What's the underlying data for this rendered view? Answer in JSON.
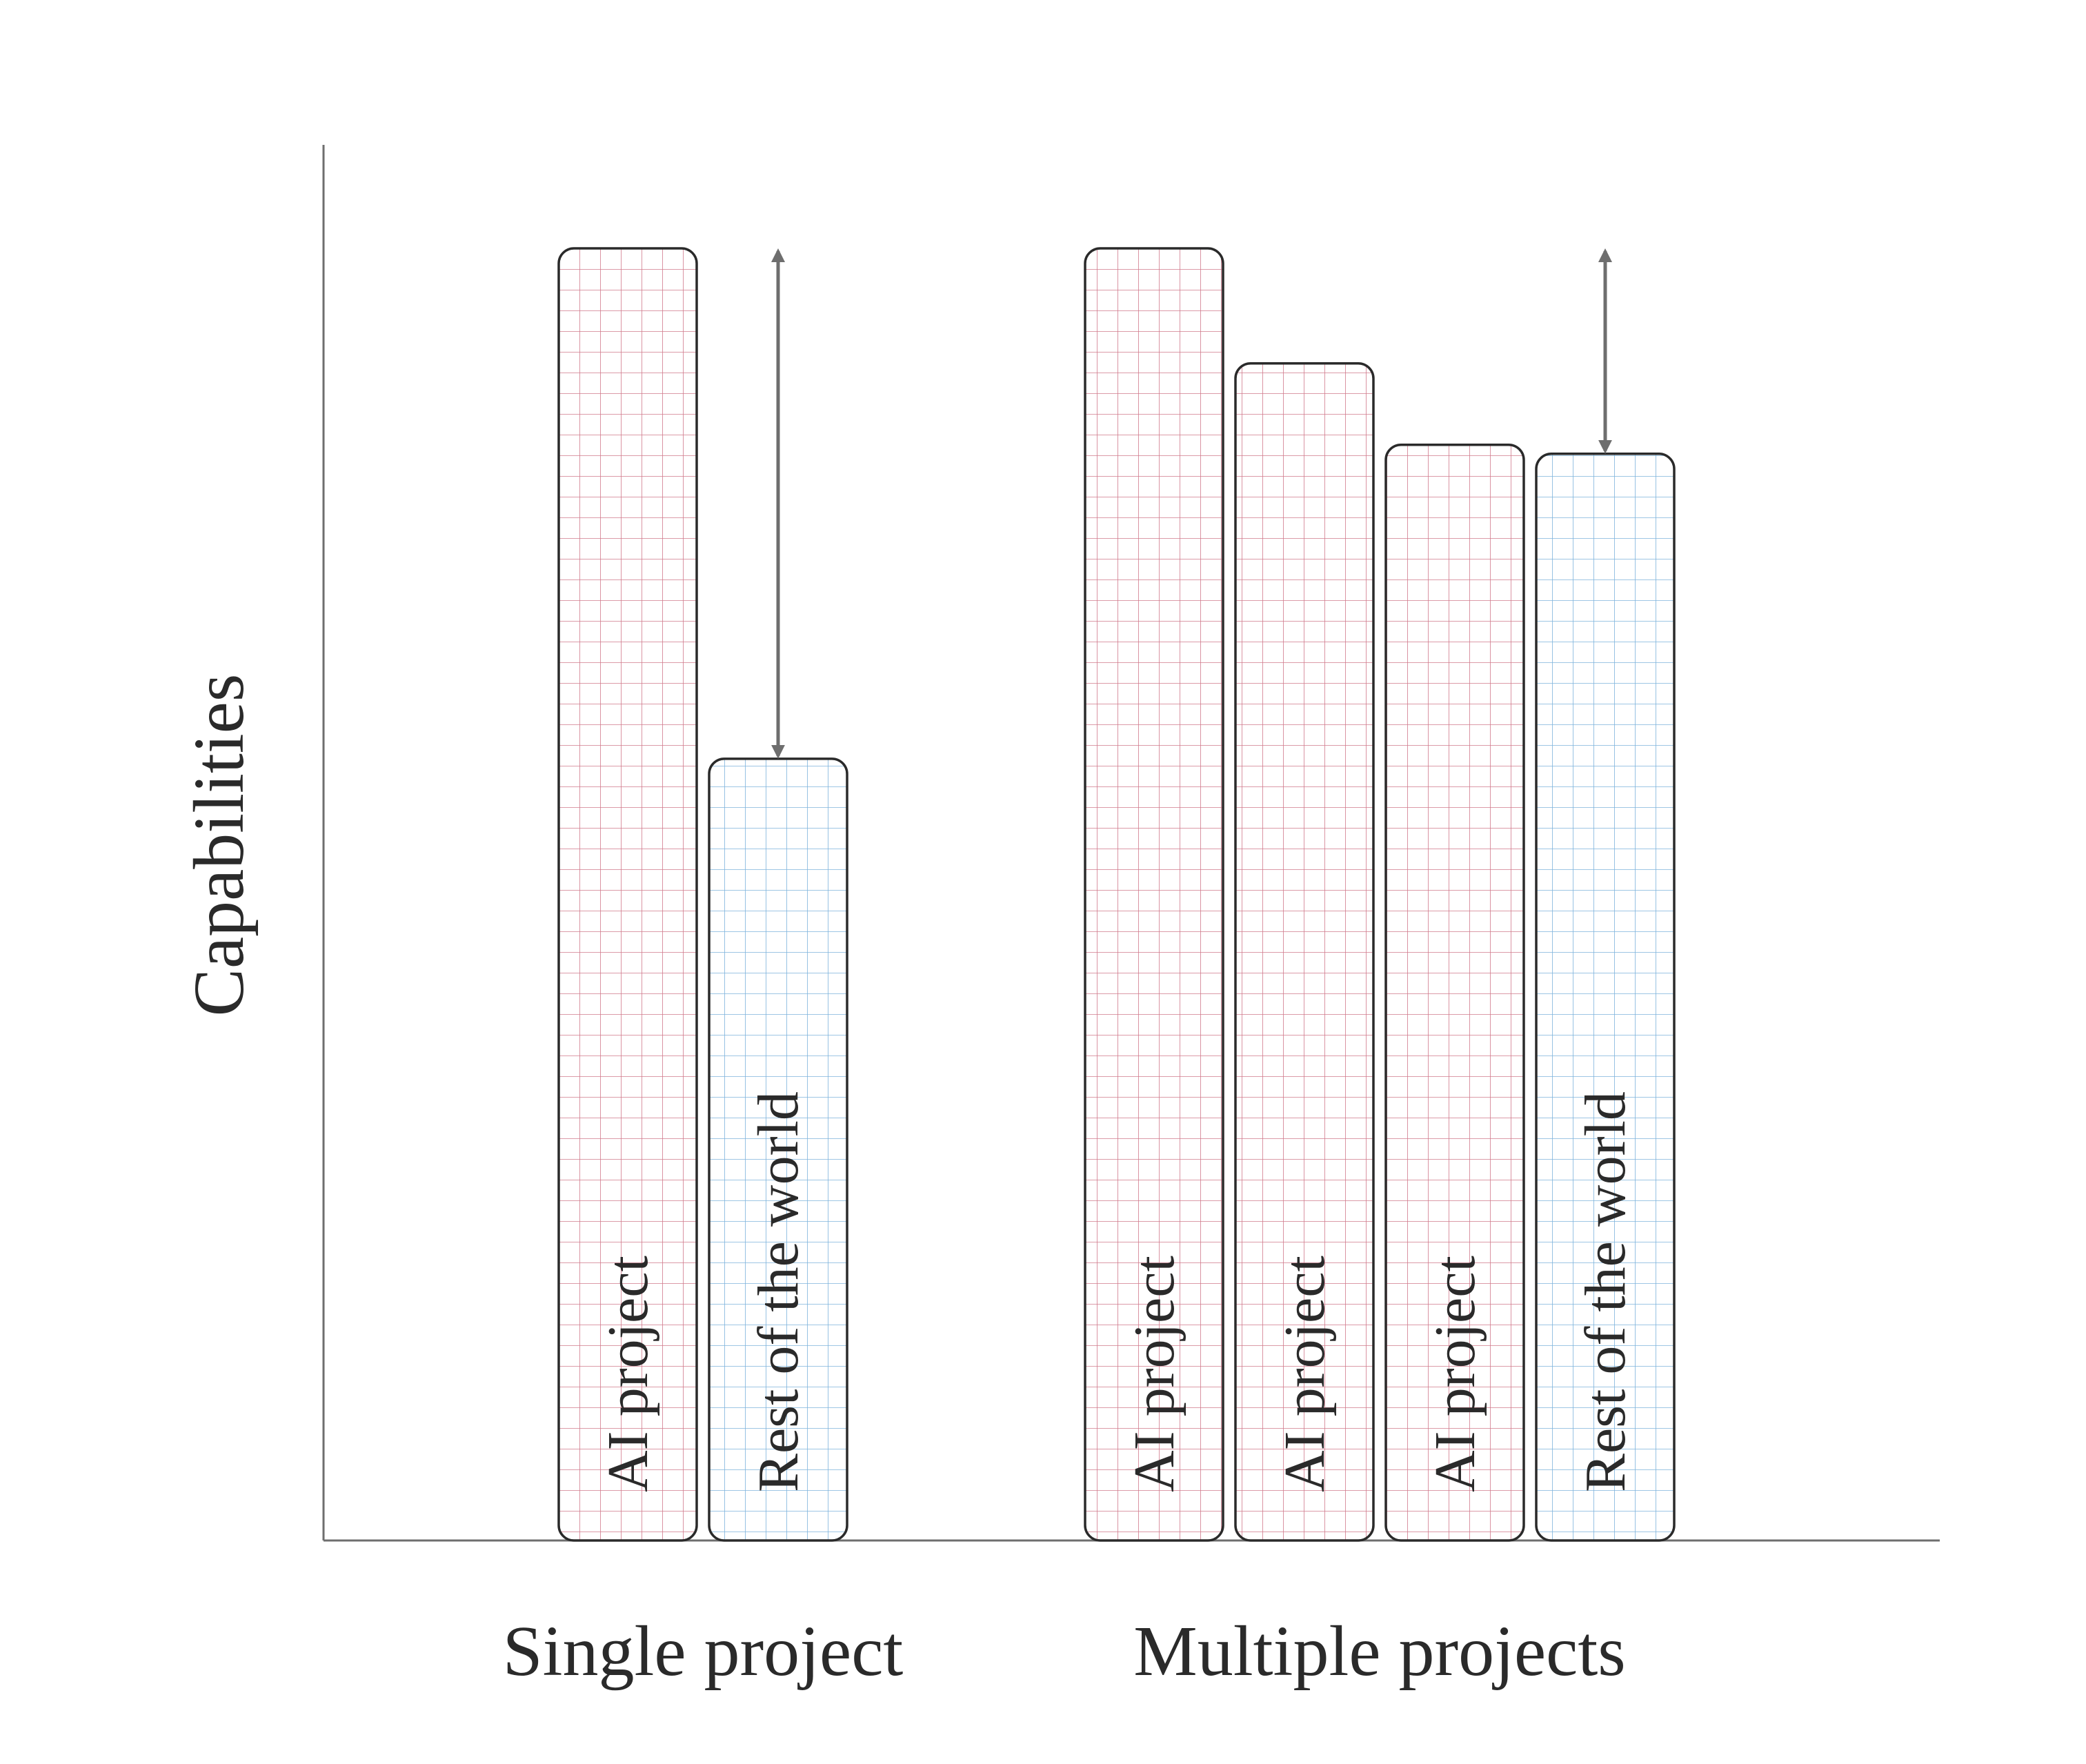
{
  "chart_data": {
    "type": "bar",
    "title": "",
    "xlabel": "",
    "ylabel": "Capabilities",
    "ylim": [
      0,
      100
    ],
    "grid": false,
    "legend": "none",
    "groups": [
      {
        "name": "Single project",
        "bars": [
          {
            "label": "AI project",
            "value": 100,
            "kind": "ai"
          },
          {
            "label": "Rest of the world",
            "value": 60.5,
            "kind": "world"
          }
        ],
        "gap_arrow": {
          "from_value": 100,
          "to_value": 60.5
        }
      },
      {
        "name": "Multiple projects",
        "bars": [
          {
            "label": "AI project",
            "value": 100,
            "kind": "ai"
          },
          {
            "label": "AI project",
            "value": 91.1,
            "kind": "ai"
          },
          {
            "label": "AI project",
            "value": 84.8,
            "kind": "ai"
          },
          {
            "label": "Rest of the world",
            "value": 84.1,
            "kind": "world"
          }
        ],
        "gap_arrow": {
          "from_value": 100,
          "to_value": 84.1
        }
      }
    ],
    "colors": {
      "ai_grid": "#d07a8c",
      "world_grid": "#7db3dc",
      "bar_outline": "#2a2a2a",
      "axis": "#6e6e6e",
      "arrow": "#6e6e6e"
    }
  }
}
